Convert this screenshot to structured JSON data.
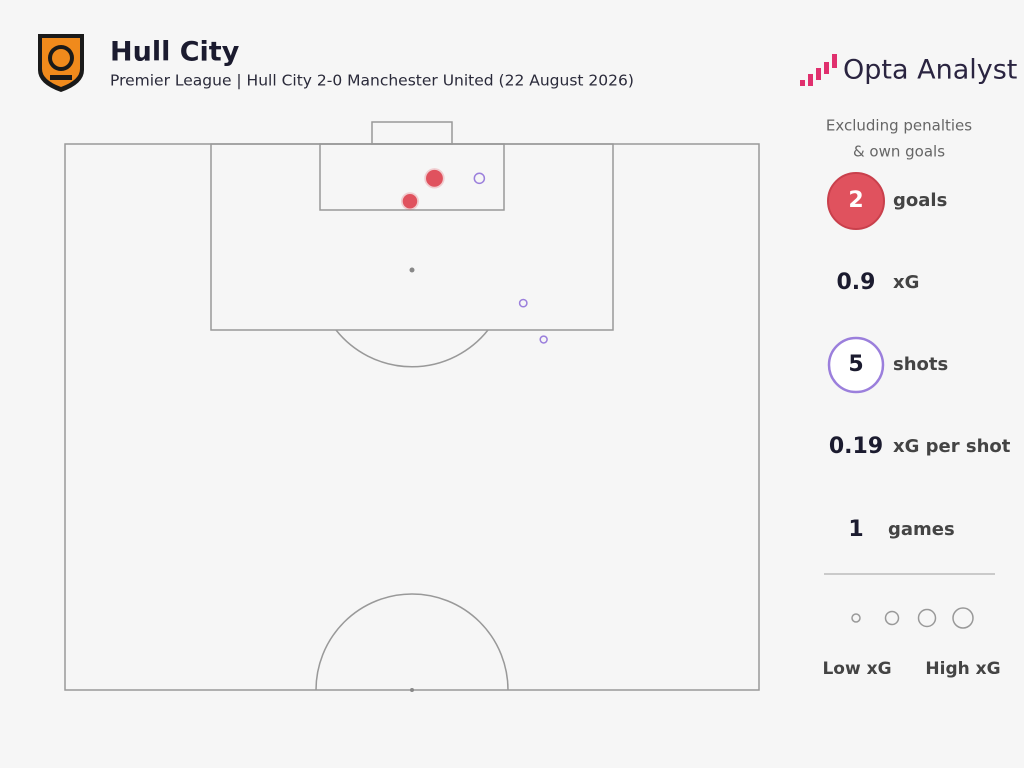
{
  "header": {
    "title": "Hull City",
    "subtitle": "Premier League | Hull City 2-0 Manchester United (22 August 2026)",
    "brand": "Opta Analyst"
  },
  "note": [
    "Excluding penalties",
    "& own goals"
  ],
  "stats": [
    {
      "value": 2,
      "label": "goals"
    },
    {
      "value": 0.9,
      "label": "xG"
    },
    {
      "value": 5,
      "label": "shots"
    },
    {
      "value": 0.19,
      "label": "xG per shot"
    },
    {
      "value": 1,
      "label": "games"
    }
  ],
  "legend": {
    "low": "Low xG",
    "high": "High xG"
  },
  "chart_data": {
    "type": "shot-map",
    "xlim": [
      0,
      68
    ],
    "ylim": [
      0,
      52.5
    ],
    "x": [
      36.2,
      33.8,
      40.6,
      44.9,
      46.9
    ],
    "y": [
      3.3,
      5.5,
      3.3,
      15.3,
      18.8
    ],
    "sizes": [
      0.35,
      0.25,
      0.15,
      0.08,
      0.07
    ],
    "filled": [
      true,
      true,
      false,
      false,
      false
    ],
    "colors": [
      "#e0525e",
      "#e0525e",
      "#9b7fdc",
      "#9b7fdc",
      "#9b7fdc"
    ]
  }
}
